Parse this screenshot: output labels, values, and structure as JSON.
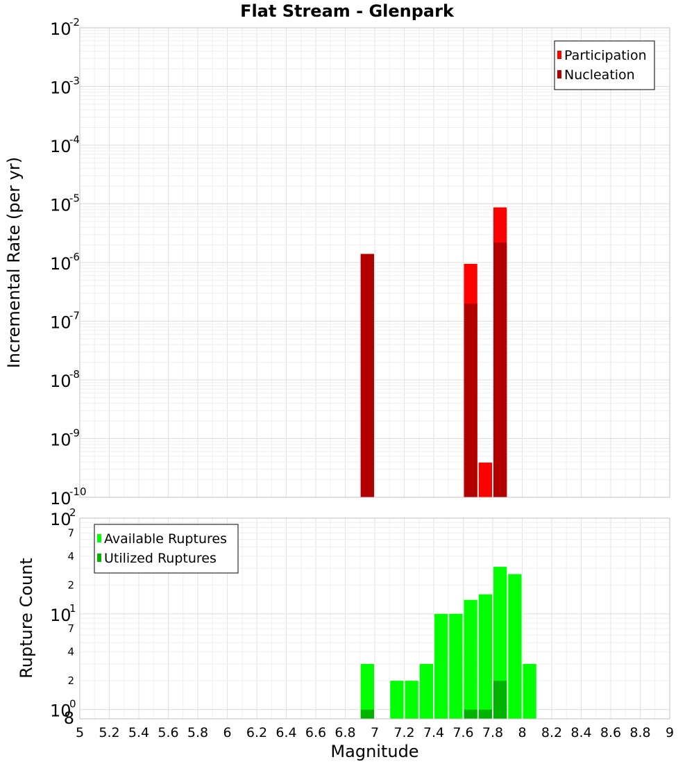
{
  "title": "Flat Stream - Glenpark",
  "chart_data": [
    {
      "type": "bar",
      "title": "Flat Stream - Glenpark",
      "xlabel": "Magnitude",
      "ylabel": "Incremental Rate (per yr)",
      "xlim": [
        5,
        9
      ],
      "ylim": [
        1e-10,
        0.01
      ],
      "yscale": "log",
      "y_tick_labels": [
        {
          "base": "10",
          "exp": "-10"
        },
        {
          "base": "10",
          "exp": "-9"
        },
        {
          "base": "10",
          "exp": "-8"
        },
        {
          "base": "10",
          "exp": "-7"
        },
        {
          "base": "10",
          "exp": "-6"
        },
        {
          "base": "10",
          "exp": "-5"
        },
        {
          "base": "10",
          "exp": "-4"
        },
        {
          "base": "10",
          "exp": "-3"
        },
        {
          "base": "10",
          "exp": "-2"
        }
      ],
      "grid": true,
      "legend": "top-right",
      "series": [
        {
          "name": "Participation",
          "color": "#ff0000",
          "x": [
            6.95,
            7.65,
            7.75,
            7.85
          ],
          "values": [
            1.4e-06,
            9.5e-07,
            3.9e-10,
            8.7e-06
          ]
        },
        {
          "name": "Nucleation",
          "color": "#b30000",
          "x": [
            6.95,
            7.65,
            7.85
          ],
          "values": [
            1.4e-06,
            2e-07,
            2.2e-06
          ]
        }
      ]
    },
    {
      "type": "bar",
      "xlabel": "Magnitude",
      "ylabel": "Rupture Count",
      "xlim": [
        5,
        9
      ],
      "ylim": [
        0.8,
        100
      ],
      "yscale": "log",
      "y_tick_labels": [
        {
          "base": "10",
          "exp": "2"
        },
        {
          "base": "10",
          "exp": "1"
        },
        {
          "base": "10",
          "exp": "0"
        }
      ],
      "y_minor_labels": [
        "7",
        "4",
        "2",
        "7",
        "4",
        "2",
        "8"
      ],
      "grid": true,
      "legend": "top-left",
      "series": [
        {
          "name": "Available Ruptures",
          "color": "#00ff00",
          "x": [
            6.95,
            7.15,
            7.25,
            7.35,
            7.45,
            7.55,
            7.65,
            7.75,
            7.85,
            7.95,
            8.05
          ],
          "values": [
            3,
            2,
            2,
            3,
            10,
            10,
            14,
            16,
            31,
            26,
            3
          ]
        },
        {
          "name": "Utilized Ruptures",
          "color": "#00b300",
          "x": [
            6.95,
            7.65,
            7.75,
            7.85
          ],
          "values": [
            1,
            1,
            1,
            2
          ]
        }
      ]
    }
  ],
  "x_ticks": [
    "5",
    "5.2",
    "5.4",
    "5.6",
    "5.8",
    "6",
    "6.2",
    "6.4",
    "6.6",
    "6.8",
    "7",
    "7.2",
    "7.4",
    "7.6",
    "7.8",
    "8",
    "8.2",
    "8.4",
    "8.6",
    "8.8",
    "9"
  ]
}
